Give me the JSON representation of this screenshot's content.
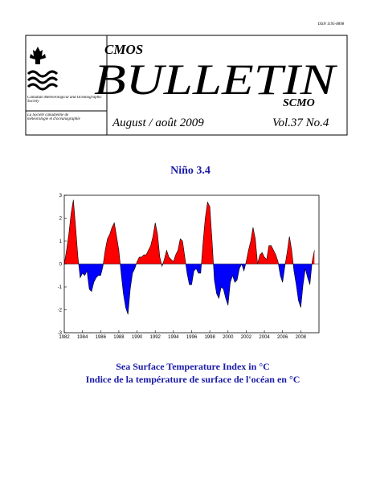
{
  "header": {
    "issn": "ISSN 1195-8898",
    "cmos": "CMOS",
    "title": "BULLETIN",
    "scmo": "SCMO",
    "society_en": "Canadian Meteorological and Oceanographic Society",
    "society_fr": "La Société canadienne de météorologie et d'océanographie",
    "date": "August / août 2009",
    "volume": "Vol.37 No.4"
  },
  "chart_data": {
    "type": "area",
    "title": "Niño 3.4",
    "caption": [
      "Sea Surface Temperature Index in °C",
      "Indice de la température de surface de l'océan en °C"
    ],
    "x": [
      1982,
      1982.25,
      1982.5,
      1982.75,
      1983,
      1983.25,
      1983.5,
      1983.75,
      1984,
      1984.25,
      1984.5,
      1984.75,
      1985,
      1985.25,
      1985.5,
      1985.75,
      1986,
      1986.25,
      1986.5,
      1986.75,
      1987,
      1987.25,
      1987.5,
      1987.75,
      1988,
      1988.25,
      1988.5,
      1988.75,
      1989,
      1989.25,
      1989.5,
      1989.75,
      1990,
      1990.25,
      1990.5,
      1990.75,
      1991,
      1991.25,
      1991.5,
      1991.75,
      1992,
      1992.25,
      1992.5,
      1992.75,
      1993,
      1993.25,
      1993.5,
      1993.75,
      1994,
      1994.25,
      1994.5,
      1994.75,
      1995,
      1995.25,
      1995.5,
      1995.75,
      1996,
      1996.25,
      1996.5,
      1996.75,
      1997,
      1997.25,
      1997.5,
      1997.75,
      1998,
      1998.25,
      1998.5,
      1998.75,
      1999,
      1999.25,
      1999.5,
      1999.75,
      2000,
      2000.25,
      2000.5,
      2000.75,
      2001,
      2001.25,
      2001.5,
      2001.75,
      2002,
      2002.25,
      2002.5,
      2002.75,
      2003,
      2003.25,
      2003.5,
      2003.75,
      2004,
      2004.25,
      2004.5,
      2004.75,
      2005,
      2005.25,
      2005.5,
      2005.75,
      2006,
      2006.25,
      2006.5,
      2006.75,
      2007,
      2007.25,
      2007.5,
      2007.75,
      2008,
      2008.25,
      2008.5,
      2008.75,
      2009,
      2009.25,
      2009.5
    ],
    "values": [
      0.0,
      0.6,
      1.3,
      2.2,
      2.8,
      1.6,
      0.3,
      -0.6,
      -0.4,
      -0.5,
      -0.3,
      -1.1,
      -1.2,
      -0.8,
      -0.6,
      -0.5,
      -0.5,
      -0.1,
      0.6,
      1.1,
      1.3,
      1.6,
      1.8,
      1.2,
      0.6,
      -0.4,
      -1.3,
      -1.9,
      -2.2,
      -1.1,
      -0.4,
      -0.2,
      0.1,
      0.3,
      0.3,
      0.4,
      0.4,
      0.6,
      0.8,
      1.2,
      1.8,
      1.3,
      0.3,
      -0.1,
      0.2,
      0.6,
      0.3,
      0.2,
      0.1,
      0.4,
      0.6,
      1.1,
      1.0,
      0.3,
      -0.4,
      -0.9,
      -0.9,
      -0.3,
      -0.2,
      -0.4,
      -0.4,
      0.9,
      2.0,
      2.7,
      2.5,
      1.0,
      -0.7,
      -1.3,
      -1.5,
      -1.0,
      -1.1,
      -1.5,
      -1.8,
      -0.8,
      -0.5,
      -0.8,
      -0.7,
      -0.2,
      0.0,
      -0.3,
      0.1,
      0.6,
      1.0,
      1.6,
      1.1,
      0.0,
      0.4,
      0.5,
      0.3,
      0.2,
      0.8,
      0.8,
      0.6,
      0.4,
      0.1,
      -0.5,
      -0.8,
      -0.1,
      0.5,
      1.2,
      0.6,
      -0.3,
      -0.9,
      -1.6,
      -1.9,
      -0.9,
      -0.2,
      -0.6,
      -0.9,
      0.1,
      0.6
    ],
    "positive_color": "#ff0000",
    "negative_color": "#0000ff",
    "xlim": [
      1982,
      2010
    ],
    "xticks": [
      1982,
      1984,
      1986,
      1988,
      1990,
      1992,
      1994,
      1996,
      1998,
      2000,
      2002,
      2004,
      2006,
      2008
    ],
    "ylim": [
      -3,
      3
    ],
    "yticks": [
      -3,
      -2,
      -1,
      0,
      1,
      2,
      3
    ]
  }
}
